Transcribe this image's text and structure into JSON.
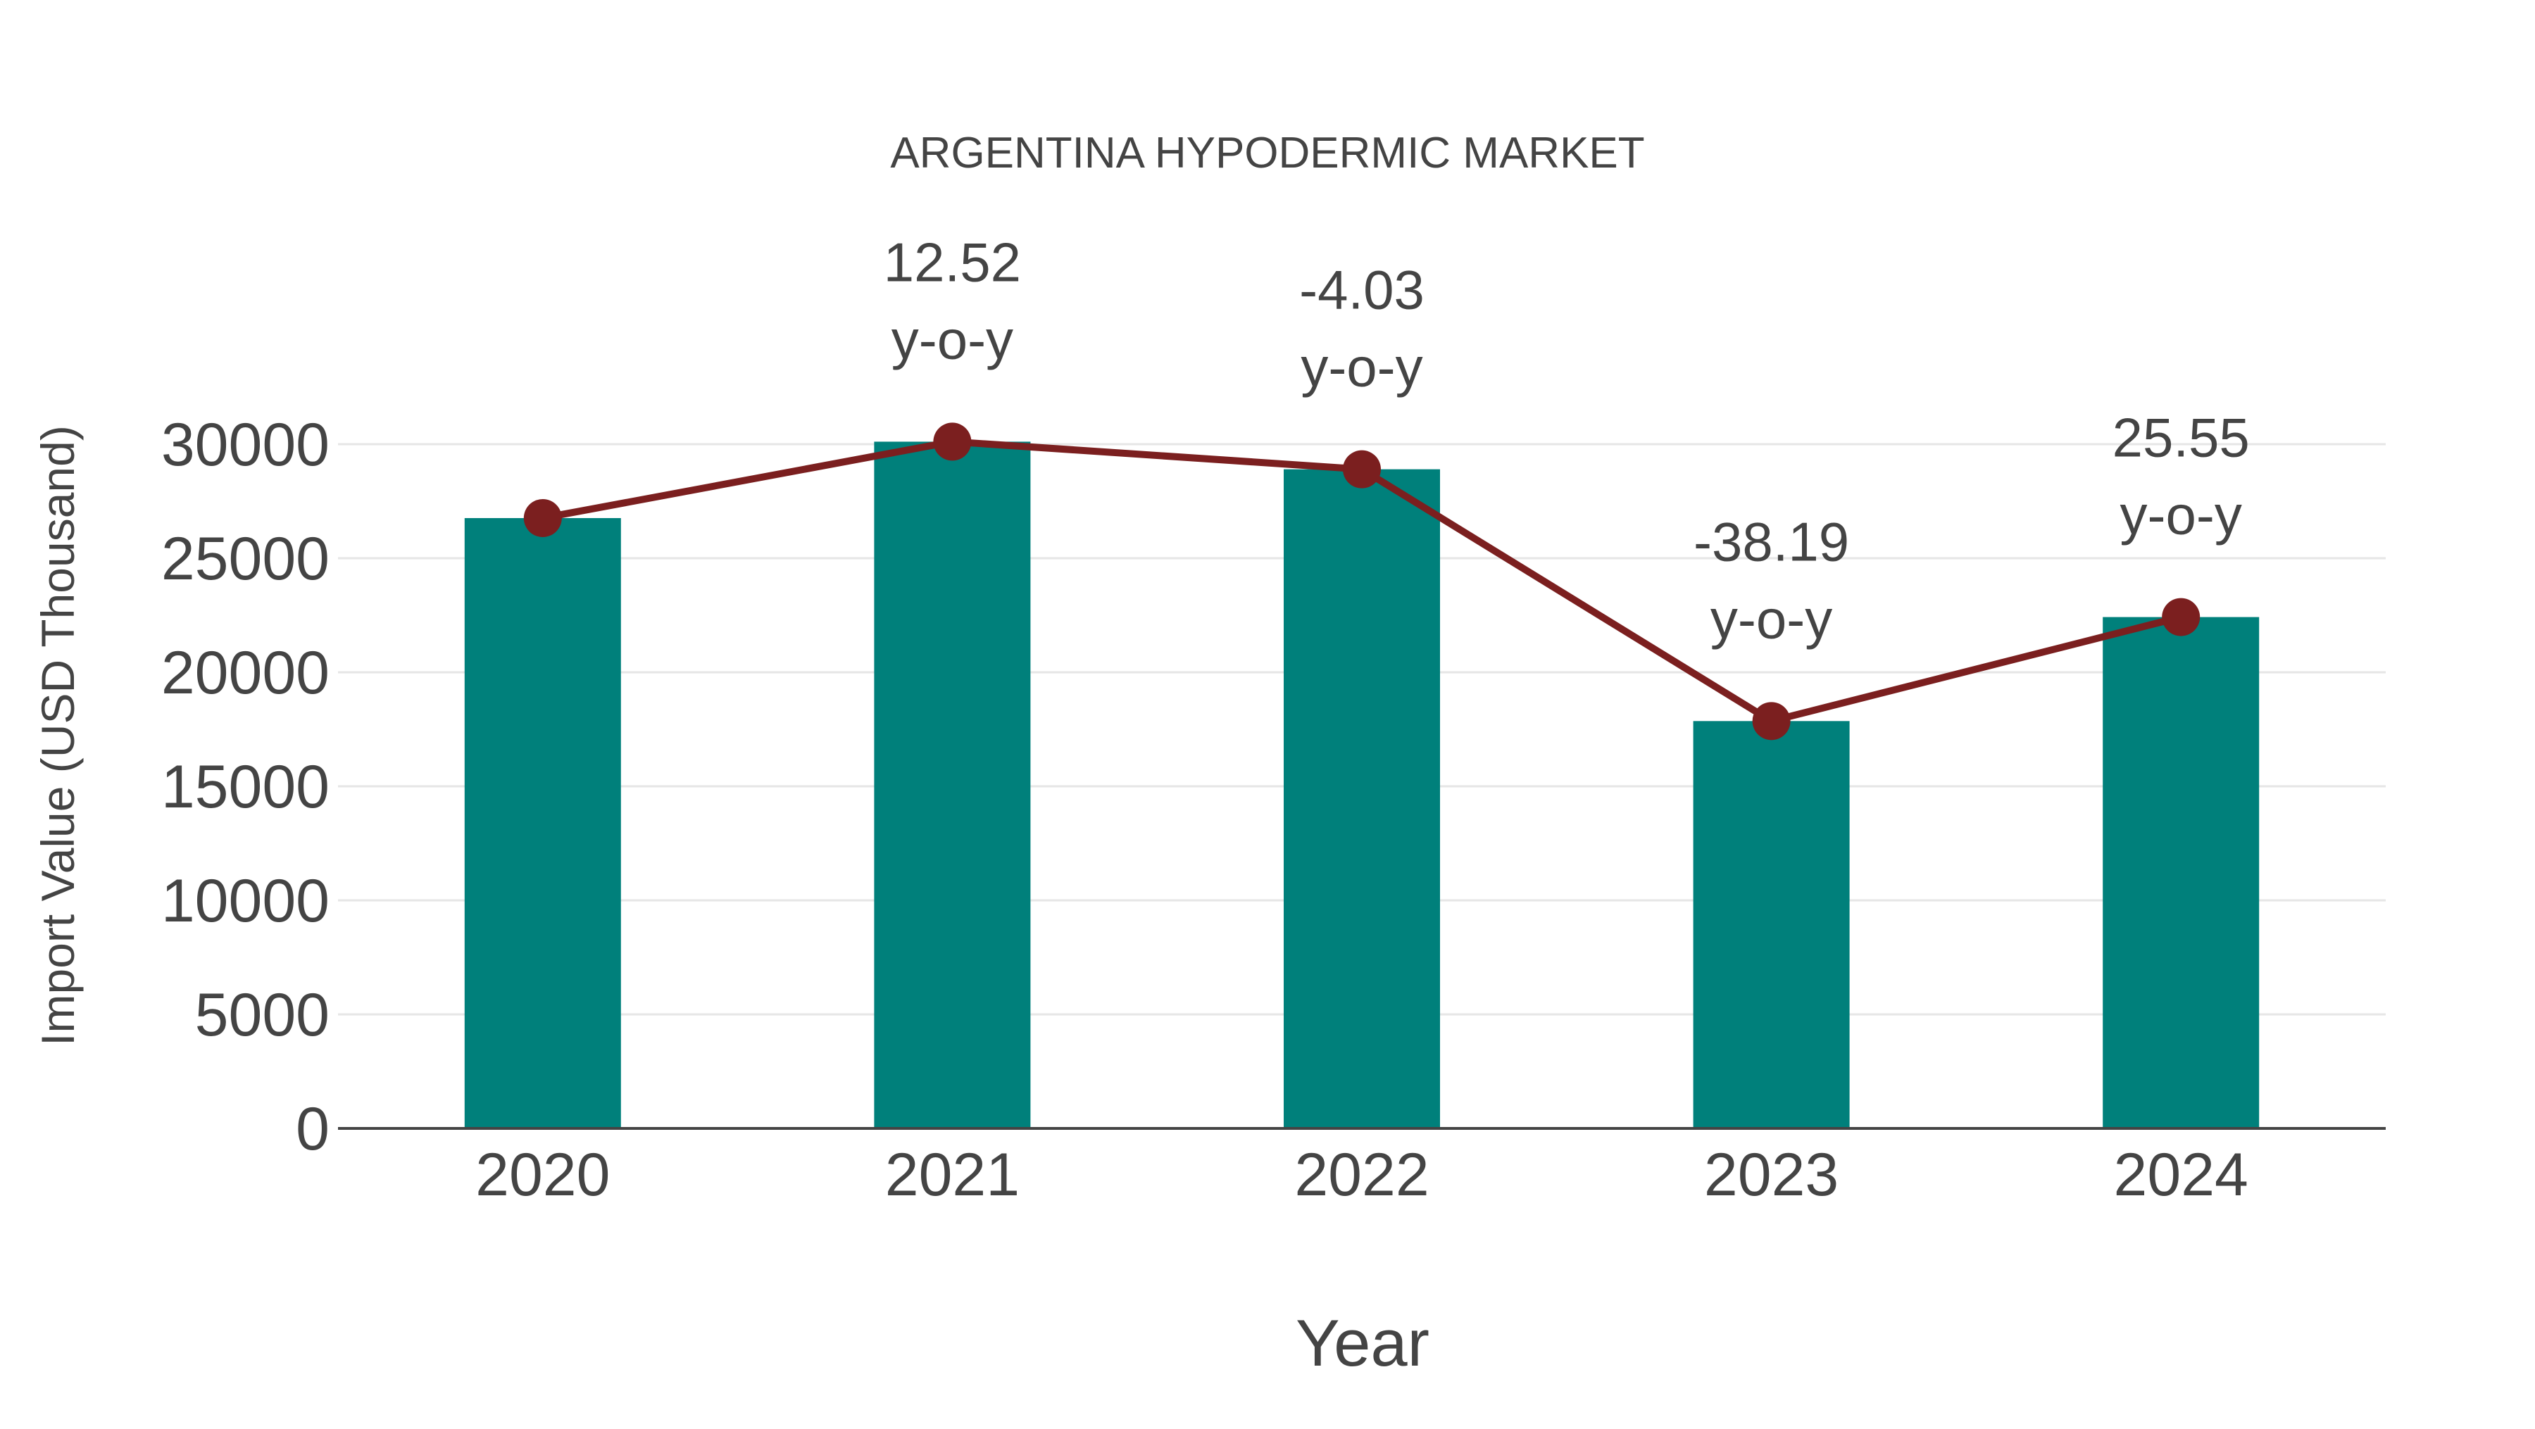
{
  "colors": {
    "bar": "#00807b",
    "line": "#7b1f1f",
    "text": "#444444",
    "grid": "#e6e6e6",
    "axis": "#444444",
    "background": "#ffffff"
  },
  "chart_data": {
    "type": "bar",
    "title": "ARGENTINA HYPODERMIC MARKET",
    "xlabel": "Year",
    "ylabel": "Import Value (USD Thousand)",
    "categories": [
      "2020",
      "2021",
      "2022",
      "2023",
      "2024"
    ],
    "series": [
      {
        "name": "Import Value",
        "type": "bar",
        "values": [
          26760,
          30110,
          28900,
          17860,
          22420
        ]
      },
      {
        "name": "Import Value (trend)",
        "type": "line",
        "values": [
          26760,
          30110,
          28900,
          17860,
          22420
        ]
      }
    ],
    "annotations": [
      {
        "category": "2021",
        "value": "12.52",
        "suffix": "y-o-y"
      },
      {
        "category": "2022",
        "value": "-4.03",
        "suffix": "y-o-y"
      },
      {
        "category": "2023",
        "value": "-38.19",
        "suffix": "y-o-y"
      },
      {
        "category": "2024",
        "value": "25.55",
        "suffix": "y-o-y"
      }
    ],
    "yticks": [
      0,
      5000,
      10000,
      15000,
      20000,
      25000,
      30000
    ],
    "ylim": [
      0,
      33000
    ],
    "grid": true,
    "legend": "none"
  }
}
